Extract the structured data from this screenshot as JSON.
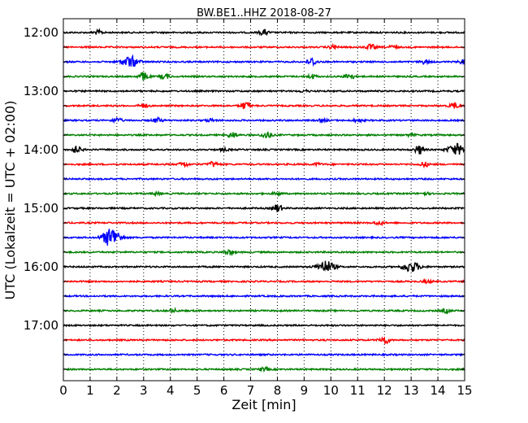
{
  "chart_data": {
    "type": "line",
    "title": "BW.BE1..HHZ 2018-08-27",
    "xlabel": "Zeit  [min]",
    "ylabel": "UTC (Lokalzeit = UTC + 02:00)",
    "xlim": [
      0,
      15
    ],
    "x_ticks": [
      "0",
      "1",
      "2",
      "3",
      "4",
      "5",
      "6",
      "7",
      "8",
      "9",
      "10",
      "11",
      "12",
      "13",
      "14",
      "15"
    ],
    "y_tick_labels": [
      "12:00",
      "13:00",
      "14:00",
      "15:00",
      "16:00",
      "17:00"
    ],
    "grid": "vertical dotted",
    "trace_colors": [
      "#000000",
      "#ff0000",
      "#0000ff",
      "#008000"
    ],
    "traces": [
      {
        "start": "12:00",
        "events": [
          [
            1.3,
            1.0
          ],
          [
            7.5,
            1.3
          ]
        ]
      },
      {
        "start": "12:15",
        "events": [
          [
            10.1,
            1.0
          ],
          [
            11.5,
            1.4
          ],
          [
            12.3,
            0.8
          ]
        ]
      },
      {
        "start": "12:30",
        "events": [
          [
            2.5,
            2.8
          ],
          [
            9.3,
            2.0
          ],
          [
            13.5,
            0.9
          ],
          [
            15.0,
            1.5
          ]
        ]
      },
      {
        "start": "12:45",
        "events": [
          [
            3.0,
            2.2
          ],
          [
            3.8,
            1.2
          ],
          [
            9.3,
            1.0
          ],
          [
            10.7,
            1.5
          ]
        ]
      },
      {
        "start": "13:00",
        "events": [
          [
            9.0,
            0.5
          ]
        ]
      },
      {
        "start": "13:15",
        "events": [
          [
            3.0,
            1.0
          ],
          [
            6.8,
            1.8
          ],
          [
            14.6,
            1.5
          ]
        ]
      },
      {
        "start": "13:30",
        "events": [
          [
            2.0,
            1.2
          ],
          [
            3.5,
            1.2
          ],
          [
            5.5,
            0.7
          ],
          [
            9.7,
            0.6
          ],
          [
            11.0,
            0.8
          ]
        ]
      },
      {
        "start": "13:45",
        "events": [
          [
            6.3,
            1.4
          ],
          [
            7.6,
            1.8
          ],
          [
            13.0,
            0.6
          ]
        ]
      },
      {
        "start": "14:00",
        "events": [
          [
            0.5,
            1.8
          ],
          [
            6.0,
            0.6
          ],
          [
            13.3,
            2.2
          ],
          [
            14.7,
            2.8
          ]
        ]
      },
      {
        "start": "14:15",
        "events": [
          [
            4.5,
            1.2
          ],
          [
            5.6,
            1.3
          ],
          [
            9.5,
            0.6
          ],
          [
            13.5,
            1.2
          ]
        ]
      },
      {
        "start": "14:30",
        "events": []
      },
      {
        "start": "14:45",
        "events": [
          [
            3.5,
            0.6
          ],
          [
            8.0,
            0.6
          ],
          [
            13.5,
            0.6
          ]
        ]
      },
      {
        "start": "15:00",
        "events": [
          [
            8.0,
            2.0
          ]
        ]
      },
      {
        "start": "15:15",
        "events": [
          [
            11.8,
            1.0
          ]
        ]
      },
      {
        "start": "15:30",
        "events": [
          [
            1.8,
            5.0
          ]
        ]
      },
      {
        "start": "15:45",
        "events": [
          [
            6.2,
            1.3
          ]
        ]
      },
      {
        "start": "16:00",
        "events": [
          [
            9.8,
            3.0
          ],
          [
            13.0,
            2.6
          ]
        ]
      },
      {
        "start": "16:15",
        "events": [
          [
            13.6,
            0.6
          ]
        ]
      },
      {
        "start": "16:30",
        "events": []
      },
      {
        "start": "16:45",
        "events": [
          [
            4.1,
            0.8
          ],
          [
            14.3,
            0.9
          ]
        ]
      },
      {
        "start": "17:00",
        "events": []
      },
      {
        "start": "17:15",
        "events": [
          [
            12.0,
            2.0
          ]
        ]
      },
      {
        "start": "17:30",
        "events": []
      },
      {
        "start": "17:45",
        "events": [
          [
            7.5,
            0.8
          ]
        ]
      }
    ]
  }
}
